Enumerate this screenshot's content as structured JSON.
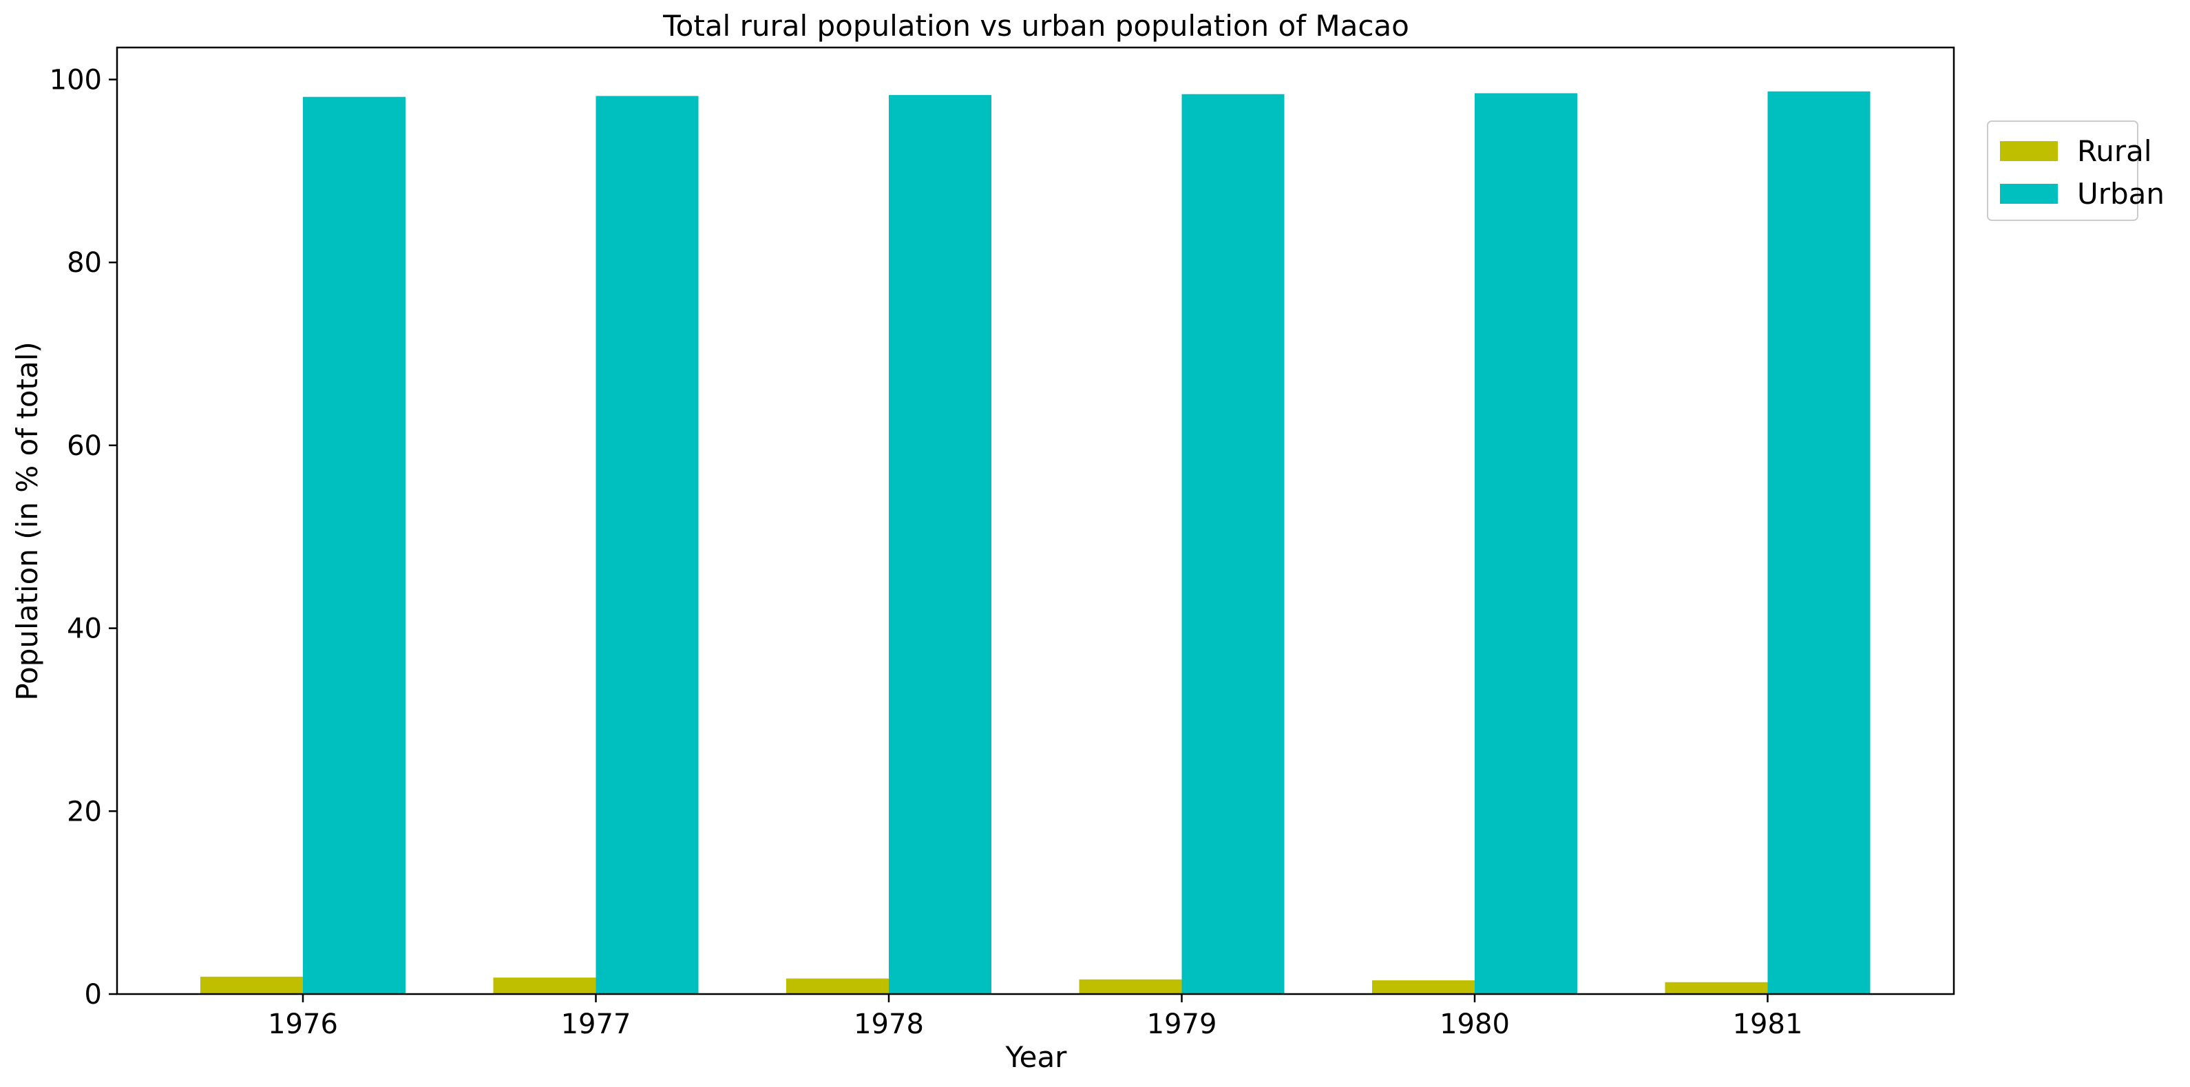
{
  "chart_data": {
    "type": "bar",
    "title": "Total rural population vs urban population of Macao",
    "xlabel": "Year",
    "ylabel": "Population (in % of total)",
    "categories": [
      "1976",
      "1977",
      "1978",
      "1979",
      "1980",
      "1981"
    ],
    "series": [
      {
        "name": "Rural",
        "color": "#bfbf00",
        "values": [
          1.9,
          1.8,
          1.7,
          1.6,
          1.5,
          1.3
        ]
      },
      {
        "name": "Urban",
        "color": "#00bfbf",
        "values": [
          98.1,
          98.2,
          98.3,
          98.4,
          98.5,
          98.7
        ]
      }
    ],
    "ylim": [
      0,
      103.5
    ],
    "yticks": [
      "0",
      "20",
      "40",
      "60",
      "80",
      "100"
    ],
    "grid": false,
    "legend_position": "top-right-outside"
  }
}
